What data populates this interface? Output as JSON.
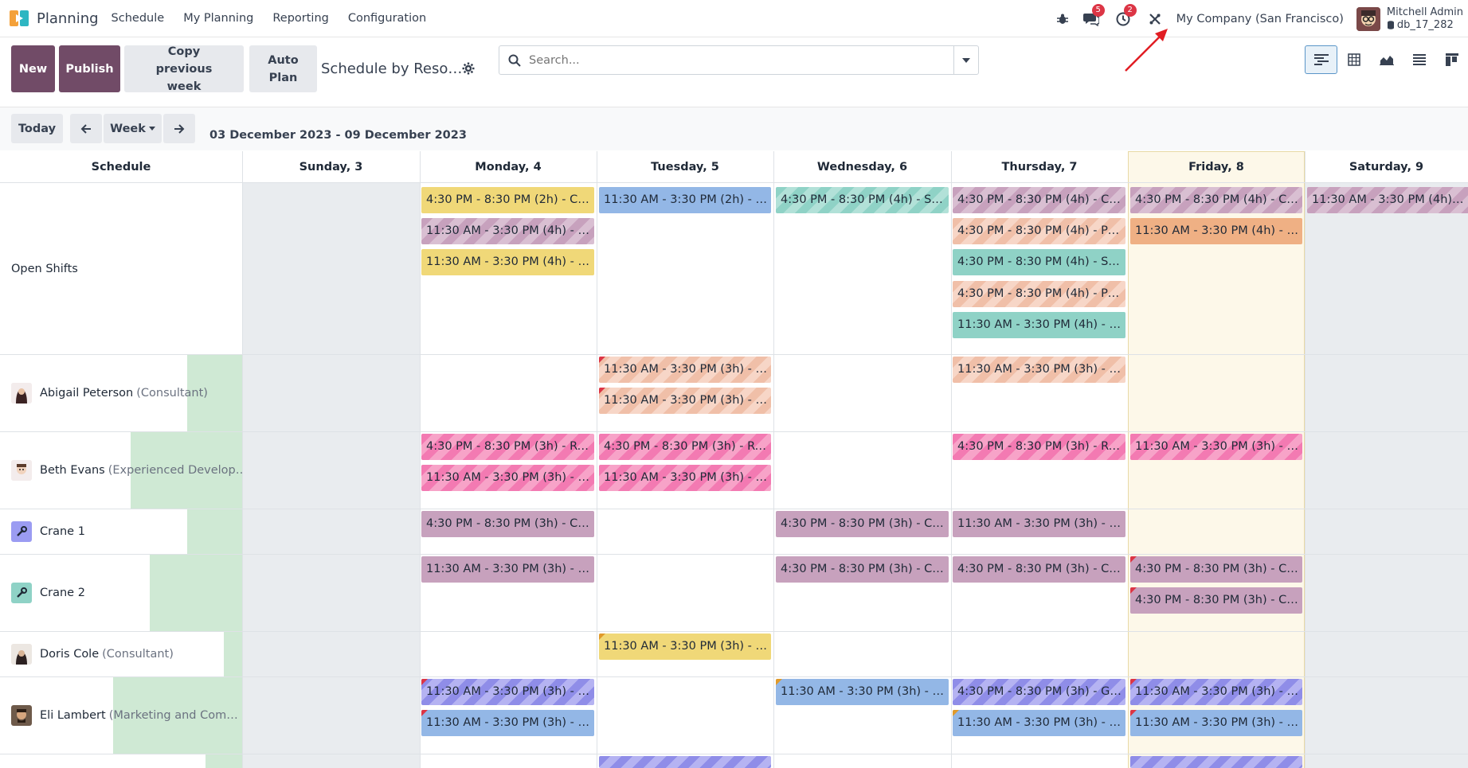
{
  "navbar": {
    "app_name": "Planning",
    "menu": [
      "Schedule",
      "My Planning",
      "Reporting",
      "Configuration"
    ],
    "messages_count": "5",
    "activities_count": "2",
    "company": "My Company (San Francisco)",
    "user_name": "Mitchell Admin",
    "database": "db_17_282"
  },
  "control": {
    "new_label": "New",
    "publish_label": "Publish",
    "copy_label": "Copy previous week",
    "autoplan_label": "Auto Plan",
    "view_title": "Schedule by Reso…",
    "search_placeholder": "Search..."
  },
  "nav": {
    "today_label": "Today",
    "scale_label": "Week",
    "range": "03 December 2023 - 09 December 2023"
  },
  "columns": [
    "Schedule",
    "Sunday, 3",
    "Monday, 4",
    "Tuesday, 5",
    "Wednesday, 6",
    "Thursday, 7",
    "Friday, 8",
    "Saturday, 9"
  ],
  "rows": [
    {
      "name": "Open Shifts",
      "role": ""
    },
    {
      "name": "Abigail Peterson",
      "role": "(Consultant)"
    },
    {
      "name": "Beth Evans",
      "role": "(Experienced Develop…"
    },
    {
      "name": "Crane 1",
      "role": ""
    },
    {
      "name": "Crane 2",
      "role": ""
    },
    {
      "name": "Doris Cole",
      "role": "(Consultant)"
    },
    {
      "name": "Eli Lambert",
      "role": "(Marketing and Com…"
    }
  ],
  "shifts": {
    "open_mon_1": "4:30 PM - 8:30 PM (2h) - Co…",
    "open_mon_2": "11:30 AM - 3:30 PM (4h) - Cr…",
    "open_mon_3": "11:30 AM - 3:30 PM (4h) - C…",
    "open_tue_1": "11:30 AM - 3:30 PM (2h) - M…",
    "open_wed_1": "4:30 PM - 8:30 PM (4h) - Sca…",
    "open_thu_1": "4:30 PM - 8:30 PM (4h) - Crane",
    "open_thu_2": "4:30 PM - 8:30 PM (4h) - Pro…",
    "open_thu_3": "4:30 PM - 8:30 PM (4h) - Sca…",
    "open_thu_4": "4:30 PM - 8:30 PM (4h) - Pro…",
    "open_thu_5": "11:30 AM - 3:30 PM (4h) - Sc…",
    "open_fri_1": "4:30 PM - 8:30 PM (4h) - Crane",
    "open_fri_2": "11:30 AM - 3:30 PM (4h) - D…",
    "open_sat_1": "11:30 AM - 3:30 PM (4h) - Cr…",
    "abi_tue_1": "11:30 AM - 3:30 PM (3h) - G…",
    "abi_tue_2": "11:30 AM - 3:30 PM (3h) - G…",
    "abi_thu_1": "11:30 AM - 3:30 PM (3h) - G…",
    "beth_mon_1": "4:30 PM - 8:30 PM (3h) - Re…",
    "beth_mon_2": "11:30 AM - 3:30 PM (3h) - R…",
    "beth_tue_1": "4:30 PM - 8:30 PM (3h) - Re…",
    "beth_tue_2": "11:30 AM - 3:30 PM (3h) - R…",
    "beth_thu_1": "4:30 PM - 8:30 PM (3h) - Re…",
    "beth_fri_1": "11:30 AM - 3:30 PM (3h) - R…",
    "c1_mon": "4:30 PM - 8:30 PM (3h) - Crane",
    "c1_wed": "4:30 PM - 8:30 PM (3h) - Crane",
    "c1_thu": "11:30 AM - 3:30 PM (3h) - Cr…",
    "c2_mon": "11:30 AM - 3:30 PM (3h) - Cr…",
    "c2_wed": "4:30 PM - 8:30 PM (3h) - Crane",
    "c2_thu": "4:30 PM - 8:30 PM (3h) - Crane",
    "c2_fri_1": "4:30 PM - 8:30 PM (3h) - Crane",
    "c2_fri_2": "4:30 PM - 8:30 PM (3h) - Crane",
    "doris_tue": "11:30 AM - 3:30 PM (3h) - C…",
    "eli_mon_1": "11:30 AM - 3:30 PM (3h) - G…",
    "eli_mon_2": "11:30 AM - 3:30 PM (3h) - M…",
    "eli_wed_1": "11:30 AM - 3:30 PM (3h) - M…",
    "eli_thu_1": "4:30 PM - 8:30 PM (3h) - Ge…",
    "eli_thu_2": "11:30 AM - 3:30 PM (3h) - M…",
    "eli_fri_1": "11:30 AM - 3:30 PM (3h) - G…",
    "eli_fri_2": "11:30 AM - 3:30 PM (3h) - M…"
  },
  "colors": {
    "primary": "#714b67",
    "today_bg": "#fdf8e9",
    "weekend_bg": "#e9ecef",
    "progress": "#cfe9d4"
  }
}
